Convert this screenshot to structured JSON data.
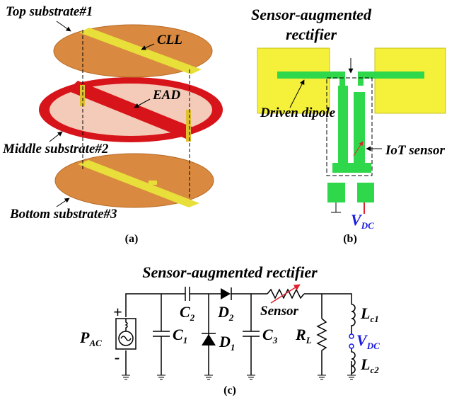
{
  "panel_a": {
    "top_substrate": "Top substrate#1",
    "cll": "CLL",
    "ead": "EAD",
    "middle_substrate": "Middle substrate#2",
    "bottom_substrate": "Bottom substrate#3",
    "caption": "(a)"
  },
  "panel_b": {
    "title": [
      "Sensor-augmented",
      "rectifier"
    ],
    "driven_dipole": "Driven dipole",
    "iot_sensor": "IoT sensor",
    "vdc": {
      "base": "V",
      "sub": "DC"
    },
    "caption": "(b)"
  },
  "panel_c": {
    "title": "Sensor-augmented rectifier",
    "plus": "+",
    "minus": "-",
    "source": {
      "base": "P",
      "sub": "AC"
    },
    "c2": {
      "base": "C",
      "sub": "2"
    },
    "d2": {
      "base": "D",
      "sub": "2"
    },
    "sensor": "Sensor",
    "c1": {
      "base": "C",
      "sub": "1"
    },
    "d1": {
      "base": "D",
      "sub": "1"
    },
    "c3": {
      "base": "C",
      "sub": "3"
    },
    "rl": {
      "base": "R",
      "sub": "L"
    },
    "lc1": {
      "base": "L",
      "sub": "c1"
    },
    "vdc": {
      "base": "V",
      "sub": "DC"
    },
    "lc2": {
      "base": "L",
      "sub": "c2"
    },
    "caption": "(c)"
  }
}
